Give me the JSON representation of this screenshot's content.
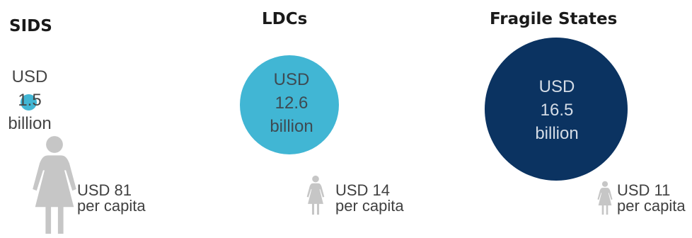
{
  "chart_data": {
    "type": "bubble",
    "groups": [
      {
        "title": "SIDS",
        "amount_lines": [
          "USD",
          "1.5",
          "billion"
        ],
        "total_billion_usd": 1.5,
        "per_capita_usd": 81,
        "per_capita_lines": [
          "USD 81",
          "per capita"
        ],
        "color": "#41b6d4"
      },
      {
        "title": "LDCs",
        "amount_lines": [
          "USD",
          "12.6",
          "billion"
        ],
        "total_billion_usd": 12.6,
        "per_capita_usd": 14,
        "per_capita_lines": [
          "USD 14",
          "per capita"
        ],
        "color": "#41b6d4"
      },
      {
        "title": "Fragile States",
        "amount_lines": [
          "USD",
          "16.5",
          "billion"
        ],
        "total_billion_usd": 16.5,
        "per_capita_usd": 11,
        "per_capita_lines": [
          "USD 11",
          "per capita"
        ],
        "color": "#0b3361"
      }
    ]
  },
  "colors": {
    "person_icon": "#c6c6c6",
    "text_on_light": "#4a4a4a",
    "text_on_dark": "#d4dce6"
  },
  "icons": [
    "person-icon"
  ]
}
